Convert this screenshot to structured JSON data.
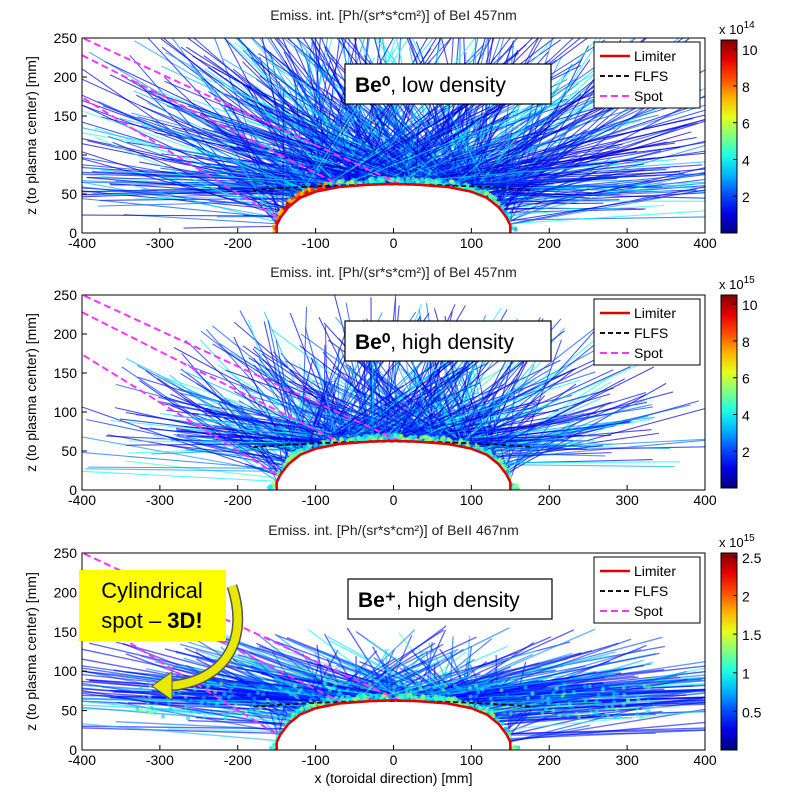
{
  "chart_data": [
    {
      "type": "heatmap",
      "title": "Emiss. int. [Ph/(sr*s*cm²)] of BeI 457nm",
      "annotation_species": "Be⁰",
      "annotation_rest": ", low density",
      "ylabel": "z (to plasma center) [mm]",
      "xlabel": "",
      "xlim": [
        -400,
        400
      ],
      "ylim": [
        0,
        250
      ],
      "xticks": [
        "-400",
        "-300",
        "-200",
        "-100",
        "0",
        "100",
        "200",
        "300",
        "400"
      ],
      "yticks": [
        "0",
        "50",
        "100",
        "150",
        "200",
        "250"
      ],
      "colorbar": {
        "multiplier": "x 10",
        "exponent": "14",
        "ticks": [
          "2",
          "4",
          "6",
          "8",
          "10"
        ],
        "tick_values": [
          2,
          4,
          6,
          8,
          10
        ],
        "max": 10.5
      },
      "legend": [
        "Limiter",
        "FLFS",
        "Spot"
      ],
      "legend_position": "top-right",
      "emission_extent_mm": 250,
      "hotspot": {
        "x": -120,
        "z": 55
      }
    },
    {
      "type": "heatmap",
      "title": "Emiss. int. [Ph/(sr*s*cm²)] of BeI 457nm",
      "annotation_species": "Be⁰",
      "annotation_rest": ", high density",
      "ylabel": "z (to plasma center) [mm]",
      "xlabel": "",
      "xlim": [
        -400,
        400
      ],
      "ylim": [
        0,
        250
      ],
      "xticks": [
        "-400",
        "-300",
        "-200",
        "-100",
        "0",
        "100",
        "200",
        "300",
        "400"
      ],
      "yticks": [
        "0",
        "50",
        "100",
        "150",
        "200",
        "250"
      ],
      "colorbar": {
        "multiplier": "x 10",
        "exponent": "15",
        "ticks": [
          "2",
          "4",
          "6",
          "8",
          "10"
        ],
        "tick_values": [
          2,
          4,
          6,
          8,
          10
        ],
        "max": 10.5
      },
      "legend": [
        "Limiter",
        "FLFS",
        "Spot"
      ],
      "legend_position": "top-right",
      "emission_extent_mm": 175
    },
    {
      "type": "heatmap",
      "title": "Emiss. int. [Ph/(sr*s*cm²)] of BeII 467nm",
      "annotation_species": "Be⁺",
      "annotation_rest": ", high density",
      "ylabel": "z (to plasma center) [mm]",
      "xlabel": "x (toroidal direction) [mm]",
      "xlim": [
        -400,
        400
      ],
      "ylim": [
        0,
        250
      ],
      "xticks": [
        "-400",
        "-300",
        "-200",
        "-100",
        "0",
        "100",
        "200",
        "300",
        "400"
      ],
      "yticks": [
        "0",
        "50",
        "100",
        "150",
        "200",
        "250"
      ],
      "colorbar": {
        "multiplier": "x 10",
        "exponent": "15",
        "ticks": [
          "0.5",
          "1",
          "1.5",
          "2",
          "2.5"
        ],
        "tick_values": [
          0.5,
          1,
          1.5,
          2,
          2.5
        ],
        "max": 2.55
      },
      "legend": [
        "Limiter",
        "FLFS",
        "Spot"
      ],
      "legend_position": "top-right",
      "emission_extent_mm": 145,
      "callout": {
        "line1": "Cylindrical",
        "line2": "spot – ",
        "line2_bold": "3D!"
      }
    }
  ],
  "series_geometry": {
    "limiter": [
      [
        -150,
        0
      ],
      [
        -150,
        10
      ],
      [
        -145,
        20
      ],
      [
        -135,
        33
      ],
      [
        -120,
        45
      ],
      [
        -100,
        53
      ],
      [
        -70,
        59
      ],
      [
        -30,
        62
      ],
      [
        0,
        63
      ],
      [
        30,
        62
      ],
      [
        70,
        59
      ],
      [
        100,
        53
      ],
      [
        120,
        45
      ],
      [
        135,
        33
      ],
      [
        145,
        20
      ],
      [
        150,
        10
      ],
      [
        150,
        0
      ]
    ],
    "flfs": {
      "x": [
        -180,
        180
      ],
      "z_edge": 55,
      "z_center": 62
    },
    "spot_lines": [
      {
        "x1": -410,
        "z1": 255,
        "x2": 10,
        "z2": 62
      },
      {
        "x1": -400,
        "z1": 228,
        "x2": -70,
        "z2": 62
      },
      {
        "x1": -410,
        "z1": 180,
        "x2": -150,
        "z2": 20
      }
    ]
  },
  "colors": {
    "limiter": "#e00000",
    "flfs": "#111111",
    "spot": "#ff33ff",
    "callout_bg": "#ffff00",
    "callout_arrow": "#e8e800"
  }
}
